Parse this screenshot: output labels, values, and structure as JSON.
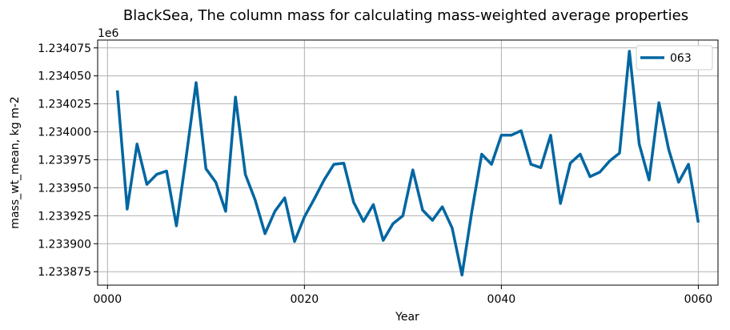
{
  "chart_data": {
    "type": "line",
    "title": "BlackSea, The column mass for calculating mass-weighted average properties",
    "xlabel": "Year",
    "ylabel": "mass_wt_mean, kg m-2",
    "offset_text": "1e6",
    "xlim": [
      -1,
      62
    ],
    "ylim": [
      1233863,
      1234082
    ],
    "grid": true,
    "legend_position": "upper right",
    "x_ticks": [
      {
        "value": 0,
        "label": "0000"
      },
      {
        "value": 20,
        "label": "0020"
      },
      {
        "value": 40,
        "label": "0040"
      },
      {
        "value": 60,
        "label": "0060"
      }
    ],
    "y_ticks": [
      {
        "value": 1233875,
        "label": "1.233875"
      },
      {
        "value": 1233900,
        "label": "1.233900"
      },
      {
        "value": 1233925,
        "label": "1.233925"
      },
      {
        "value": 1233950,
        "label": "1.233950"
      },
      {
        "value": 1233975,
        "label": "1.233975"
      },
      {
        "value": 1234000,
        "label": "1.234000"
      },
      {
        "value": 1234025,
        "label": "1.234025"
      },
      {
        "value": 1234050,
        "label": "1.234050"
      },
      {
        "value": 1234075,
        "label": "1.234075"
      }
    ],
    "series": [
      {
        "name": "063",
        "color": "#0066a1",
        "x": [
          1,
          2,
          3,
          4,
          5,
          6,
          7,
          8,
          9,
          10,
          11,
          12,
          13,
          14,
          15,
          16,
          17,
          18,
          19,
          20,
          21,
          22,
          23,
          24,
          25,
          26,
          27,
          28,
          29,
          30,
          31,
          32,
          33,
          34,
          35,
          36,
          37,
          38,
          39,
          40,
          41,
          42,
          43,
          44,
          45,
          46,
          47,
          48,
          49,
          50,
          51,
          52,
          53,
          54,
          55,
          56,
          57,
          58,
          59,
          60
        ],
        "values": [
          1234037,
          1233931,
          1233989,
          1233953,
          1233962,
          1233965,
          1233916,
          1233978,
          1234044,
          1233967,
          1233955,
          1233929,
          1234031,
          1233962,
          1233939,
          1233909,
          1233929,
          1233941,
          1233902,
          1233924,
          1233940,
          1233957,
          1233971,
          1233972,
          1233937,
          1233920,
          1233935,
          1233903,
          1233918,
          1233925,
          1233966,
          1233930,
          1233921,
          1233933,
          1233914,
          1233872,
          1233929,
          1233980,
          1233971,
          1233997,
          1233997,
          1234001,
          1233971,
          1233968,
          1233997,
          1233936,
          1233972,
          1233980,
          1233960,
          1233964,
          1233974,
          1233981,
          1234072,
          1233989,
          1233957,
          1234026,
          1233984,
          1233955,
          1233971,
          1233919
        ]
      }
    ]
  }
}
